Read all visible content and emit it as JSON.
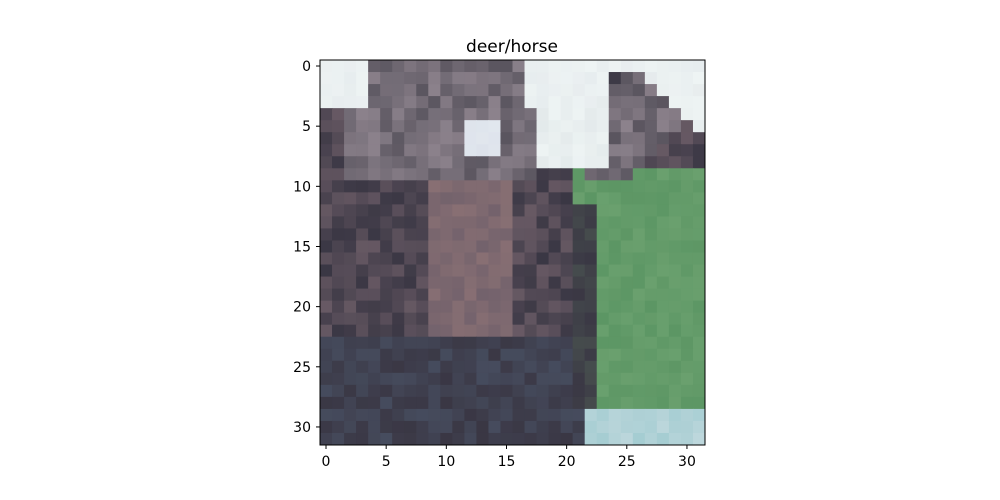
{
  "chart_data": {
    "type": "image",
    "title": "deer/horse",
    "image_size": [
      32,
      32
    ],
    "xlim": [
      -0.5,
      31.5
    ],
    "ylim": [
      31.5,
      -0.5
    ],
    "xticks": [
      0,
      5,
      10,
      15,
      20,
      25,
      30
    ],
    "yticks": [
      0,
      5,
      10,
      15,
      20,
      25,
      30
    ],
    "grid": false,
    "legend": "none"
  }
}
